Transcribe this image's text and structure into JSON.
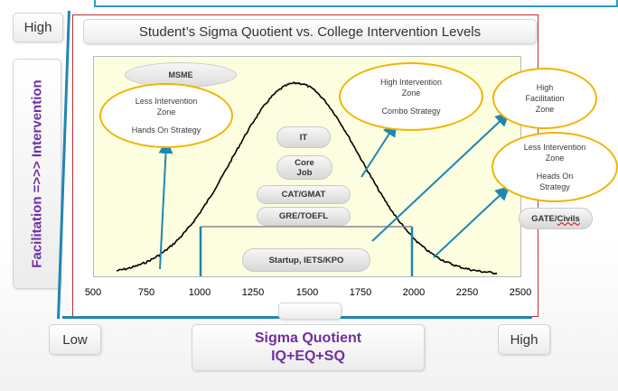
{
  "y_axis": {
    "high_label": "High",
    "title": "Facilitation =>>> Intervention"
  },
  "x_axis": {
    "low_label": "Low",
    "high_label": "High",
    "title_line1": "Sigma Quotient",
    "title_line2": "IQ+EQ+SQ",
    "ticks": [
      "500",
      "750",
      "1000",
      "1250",
      "1500",
      "1750",
      "2000",
      "2250",
      "2500"
    ]
  },
  "title": "Student’s Sigma Quotient vs. College Intervention Levels",
  "ovals": {
    "msme": "MSME",
    "less_left": [
      "Less Intervention",
      "Zone",
      "",
      "Hands On Strategy"
    ],
    "high_intervention": [
      "High Intervention",
      "Zone",
      "",
      "Combo Strategy"
    ],
    "high_facilitation": [
      "High",
      "Facilitation",
      "Zone"
    ],
    "less_right": [
      "Less Intervention",
      "Zone",
      "",
      "Heads On",
      "Strategy"
    ]
  },
  "pills": {
    "it": "IT",
    "core_job": [
      "Core",
      "Job"
    ],
    "cat_gmat": "CAT/GMAT",
    "gre_toefl": "GRE/TOEFL",
    "startup": "Startup, IETS/KPO",
    "gate_civils": [
      "GATE/",
      "Civils"
    ]
  },
  "curve": {
    "mean": 1450,
    "sd": 300,
    "range": [
      610,
      2390
    ],
    "baseline_value": 1000
  },
  "colors": {
    "accent_blue": "#1f86b0",
    "oval_border": "#f0b400",
    "title_purple": "#7030a0",
    "frame_red": "#c03030",
    "plot_bg": "#fdfde0"
  }
}
